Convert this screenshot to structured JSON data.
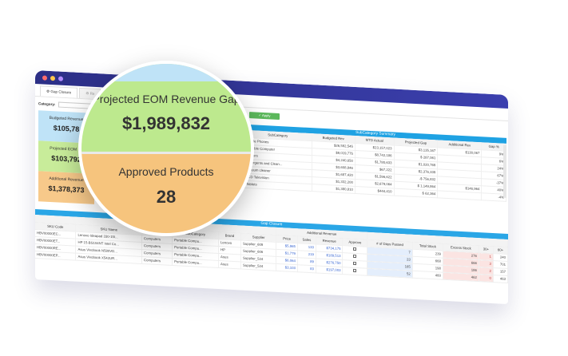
{
  "window": {
    "dots": [
      "#ff6d6d",
      "#ffc74d",
      "#b38cff"
    ]
  },
  "tabs": [
    "Gap Closure",
    "Re"
  ],
  "filter": {
    "category_label": "Category:"
  },
  "apply_button": "✓ Apply",
  "kpis": [
    {
      "title": "Budgeted Revenue",
      "value": "$105,78"
    },
    {
      "title": "Projected EOM Sa",
      "value": "$103,792"
    },
    {
      "title": "Additional Revenue",
      "value": "$1,378,373"
    }
  ],
  "subcategory_summary": {
    "title": "SubCategory Summary",
    "headers": [
      "SubCategory",
      "Budgeted Rev",
      "MTD Actual",
      "Projected Gap",
      "Additional Rev",
      "Gap %"
    ],
    "rows": [
      [
        "Mobile Phones",
        "$26,592,545",
        "$23,157,023",
        "$3,135,167",
        "$130,067",
        "9%"
      ],
      [
        "Portable Computer",
        "$9,019,775",
        "$8,742,186",
        "$ 287,061",
        "",
        "6%"
      ],
      [
        "Diapers",
        "$4,240,650",
        "$1,780,633",
        "$1,020,769",
        "",
        "24%"
      ],
      [
        "Detergents and Clean...",
        "$3,608,846",
        "$67,222",
        "$2,376,339",
        "",
        "67%"
      ],
      [
        "Vacuum cleaner",
        "$1,687,420",
        "$1,596,622",
        "-$ 756,832",
        "",
        "-37%"
      ],
      [
        "LCD Television",
        "$1,332,200",
        "$2,679,064",
        "$ 1,149,864",
        "$146,964",
        "40%"
      ],
      [
        "Tablets",
        "$1,380,810",
        "$444,410",
        "$ 62,364",
        "",
        "-4%"
      ]
    ]
  },
  "gap_closure": {
    "title": "Gap Closure",
    "group_header": "Additional Revenue",
    "headers": [
      "SKU Code",
      "SKU Name",
      "Category",
      "SubCategory",
      "Brand",
      "Supplier",
      "Price",
      "Sales",
      "Revenue",
      "Approve",
      "# of Days Passed",
      "Total Stock",
      "Excess Stock",
      "30+",
      "60+"
    ],
    "rows": [
      [
        "HBV00000EC...",
        "Lenovo Ideapad 330-15I...",
        "Computers",
        "Portable Compu...",
        "Lenovo",
        "Supplier_609",
        "$5,965",
        "133",
        "$734,175",
        "",
        "7",
        "239",
        "276",
        "1",
        "240"
      ],
      [
        "HBV00000ET...",
        "HP 15-BS104NT Intel Co...",
        "Computers",
        "Portable Compu...",
        "HP",
        "Supplier_606",
        "$1,779",
        "219",
        "$189,513",
        "",
        "23",
        "668",
        "666",
        "3",
        "701"
      ],
      [
        "HBV00000RE...",
        "Asus Vivobook N580VD...",
        "Computers",
        "Portable Compu...",
        "Asus",
        "Supplier_524",
        "$6,064",
        "89",
        "$276,750",
        "",
        "165",
        "198",
        "186",
        "2",
        "157"
      ],
      [
        "HBV00000EP...",
        "Asus Vivobook X542UR...",
        "Computers",
        "Portable Compu...",
        "Asus",
        "Supplier_524",
        "$3,103",
        "83",
        "$197,003",
        "",
        "52",
        "460",
        "462",
        "0",
        "463"
      ]
    ]
  },
  "magnifier": {
    "title_top": "Projected EOM Revenue Gap",
    "value_top": "$1,989,832",
    "title_bottom": "Approved Products",
    "value_bottom": "28"
  }
}
